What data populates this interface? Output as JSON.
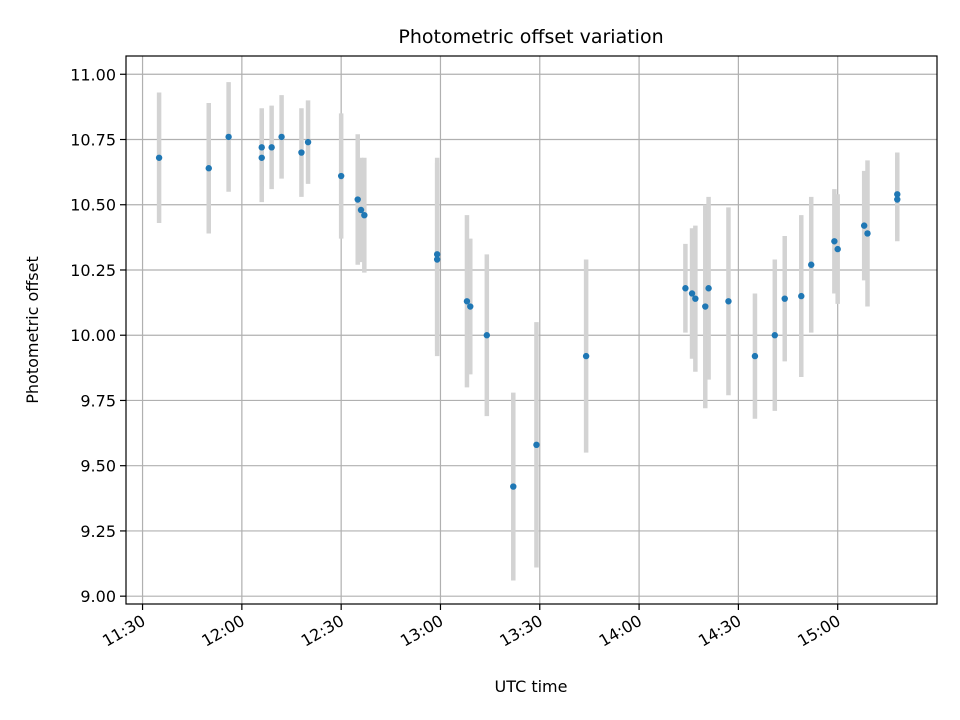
{
  "chart_data": {
    "type": "scatter",
    "title": "Photometric offset variation",
    "xlabel": "UTC time",
    "ylabel": "Photometric offset",
    "x_unit": "HH:MM (UTC)",
    "xlim": [
      "11:25",
      "15:30"
    ],
    "ylim": [
      8.97,
      11.07
    ],
    "x_ticks": [
      "11:30",
      "12:00",
      "12:30",
      "13:00",
      "13:30",
      "14:00",
      "14:30",
      "15:00"
    ],
    "y_ticks": [
      "9.00",
      "9.25",
      "9.50",
      "9.75",
      "10.00",
      "10.25",
      "10.50",
      "10.75",
      "11.00"
    ],
    "y_tick_values": [
      9.0,
      9.25,
      9.5,
      9.75,
      10.0,
      10.25,
      10.5,
      10.75,
      11.0
    ],
    "grid": true,
    "colors": {
      "point": "#1f77b4",
      "errorbar": "#d3d3d3",
      "grid": "#b0b0b0"
    },
    "series": [
      {
        "x": [
          "11:35",
          "11:50",
          "11:56",
          "12:06",
          "12:06",
          "12:09",
          "12:12",
          "12:18",
          "12:20",
          "12:30",
          "12:35",
          "12:36",
          "12:37",
          "12:59",
          "12:59",
          "13:08",
          "13:09",
          "13:14",
          "13:22",
          "13:29",
          "13:44",
          "14:14",
          "14:16",
          "14:17",
          "14:20",
          "14:21",
          "14:27",
          "14:35",
          "14:41",
          "14:44",
          "14:49",
          "14:52",
          "14:59",
          "15:00",
          "15:08",
          "15:09",
          "15:18",
          "15:18"
        ],
        "y": [
          10.68,
          10.64,
          10.76,
          10.72,
          10.68,
          10.72,
          10.76,
          10.7,
          10.74,
          10.61,
          10.52,
          10.48,
          10.46,
          10.31,
          10.29,
          10.13,
          10.11,
          10.0,
          9.42,
          9.58,
          9.92,
          10.18,
          10.16,
          10.14,
          10.11,
          10.18,
          10.13,
          9.92,
          10.0,
          10.14,
          10.15,
          10.27,
          10.36,
          10.33,
          10.42,
          10.39,
          10.54,
          10.52
        ],
        "y_err": [
          0.25,
          0.25,
          0.21,
          0.15,
          0.17,
          0.16,
          0.16,
          0.17,
          0.16,
          0.24,
          0.25,
          0.2,
          0.22,
          0.37,
          0.37,
          0.33,
          0.26,
          0.31,
          0.36,
          0.47,
          0.37,
          0.17,
          0.25,
          0.28,
          0.39,
          0.35,
          0.36,
          0.24,
          0.29,
          0.24,
          0.31,
          0.26,
          0.2,
          0.21,
          0.21,
          0.28,
          0.16,
          0.16
        ]
      }
    ]
  }
}
